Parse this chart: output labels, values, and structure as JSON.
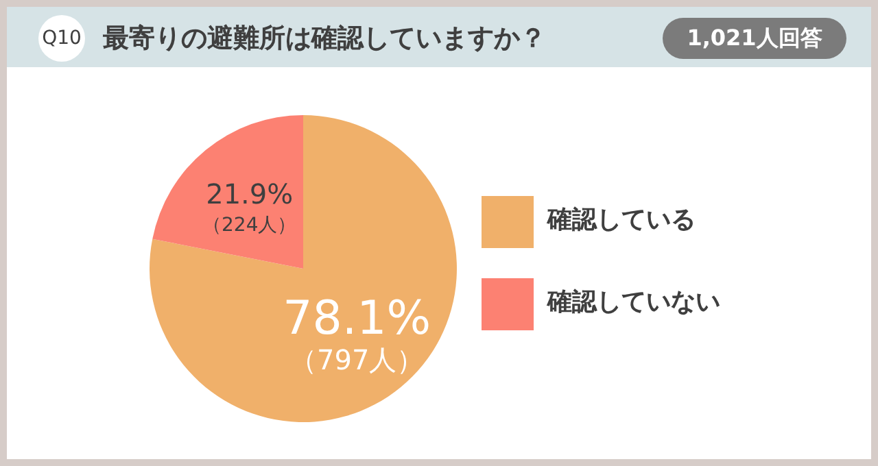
{
  "chart_data": {
    "type": "pie",
    "title": "最寄りの避難所は確認していますか？",
    "subtitle": "1,021人回答",
    "annotations": [
      "Q10"
    ],
    "categories": [
      "確認している",
      "確認していない"
    ],
    "values": [
      78.1,
      21.9
    ],
    "colors": [
      "#f0b06a",
      "#fc8172"
    ],
    "value_labels": [
      "78.1%\n（797人）",
      "21.9%\n（224人）"
    ],
    "legend": "right"
  }
}
